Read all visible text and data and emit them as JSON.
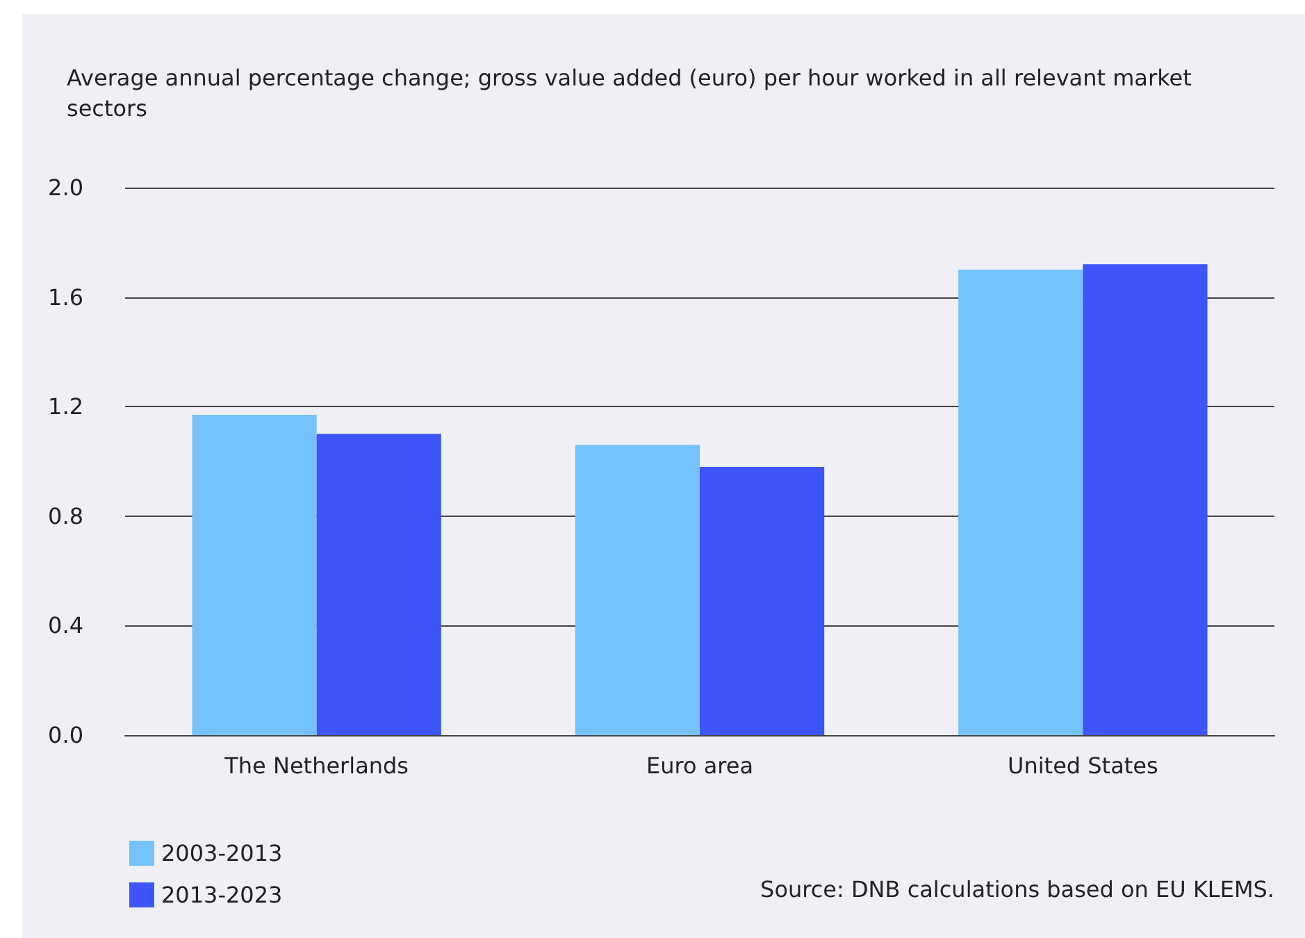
{
  "chart_data": {
    "type": "bar",
    "title": "Average annual percentage change; gross value added (euro) per hour worked in all relevant market sectors",
    "categories": [
      "The Netherlands",
      "Euro area",
      "United States"
    ],
    "series": [
      {
        "name": "2003-2013",
        "color": "#73c2fb",
        "values": [
          1.17,
          1.06,
          1.7
        ]
      },
      {
        "name": "2013-2023",
        "color": "#3d55fa",
        "values": [
          1.1,
          0.98,
          1.72
        ]
      }
    ],
    "ylim": [
      0,
      2
    ],
    "yticks": [
      {
        "value": 0,
        "label": "0.0"
      },
      {
        "value": 0.4,
        "label": "0.4"
      },
      {
        "value": 0.8,
        "label": "0.8"
      },
      {
        "value": 1.2,
        "label": "1.2"
      },
      {
        "value": 1.6,
        "label": "1.6"
      },
      {
        "value": 2,
        "label": "2.0"
      }
    ],
    "grid": "y",
    "legend": "bottom left",
    "annotations": [
      "Source: DNB calculations based on EU KLEMS."
    ]
  }
}
